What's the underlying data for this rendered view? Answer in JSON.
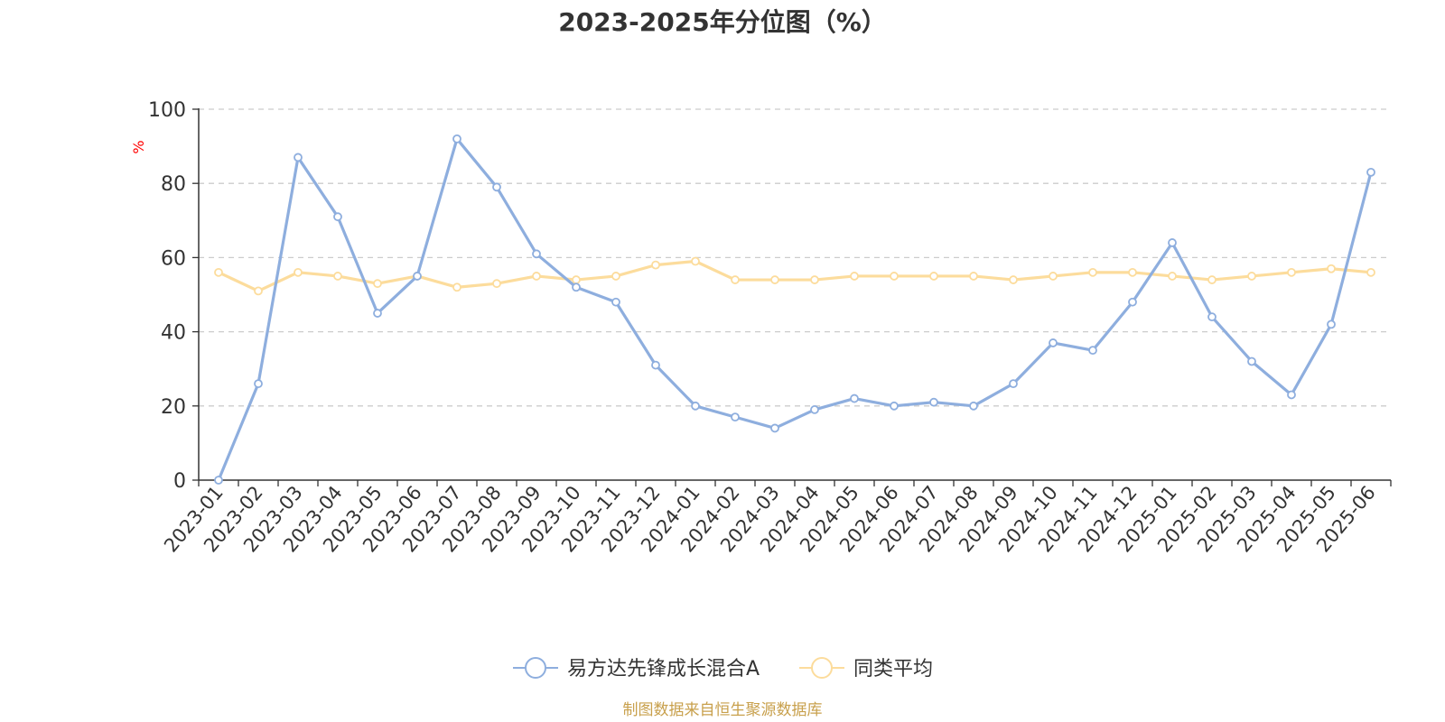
{
  "chart_data": {
    "type": "line",
    "title": "2023-2025年分位图（%）",
    "ylabel": "%",
    "ylim": [
      0,
      100
    ],
    "yticks": [
      0,
      20,
      40,
      60,
      80,
      100
    ],
    "grid": true,
    "legend_position": "bottom",
    "categories": [
      "2023-01",
      "2023-02",
      "2023-03",
      "2023-04",
      "2023-05",
      "2023-06",
      "2023-07",
      "2023-08",
      "2023-09",
      "2023-10",
      "2023-11",
      "2023-12",
      "2024-01",
      "2024-02",
      "2024-03",
      "2024-04",
      "2024-05",
      "2024-06",
      "2024-07",
      "2024-08",
      "2024-09",
      "2024-10",
      "2024-11",
      "2024-12",
      "2025-01",
      "2025-02",
      "2025-03",
      "2025-04",
      "2025-05",
      "2025-06"
    ],
    "series": [
      {
        "name": "易方达先锋成长混合A",
        "color": "#8eaede",
        "values": [
          0,
          26,
          87,
          71,
          45,
          55,
          92,
          79,
          61,
          52,
          48,
          31,
          20,
          17,
          14,
          19,
          22,
          20,
          21,
          20,
          26,
          37,
          35,
          48,
          64,
          44,
          32,
          23,
          42,
          83
        ]
      },
      {
        "name": "同类平均",
        "color": "#fcdc9c",
        "values": [
          56,
          51,
          56,
          55,
          53,
          55,
          52,
          53,
          55,
          54,
          55,
          58,
          59,
          54,
          54,
          54,
          55,
          55,
          55,
          55,
          54,
          55,
          56,
          56,
          55,
          54,
          55,
          56,
          57,
          56
        ]
      }
    ]
  },
  "source": {
    "text": "制图数据来自恒生聚源数据库",
    "color": "#c8a04c"
  }
}
